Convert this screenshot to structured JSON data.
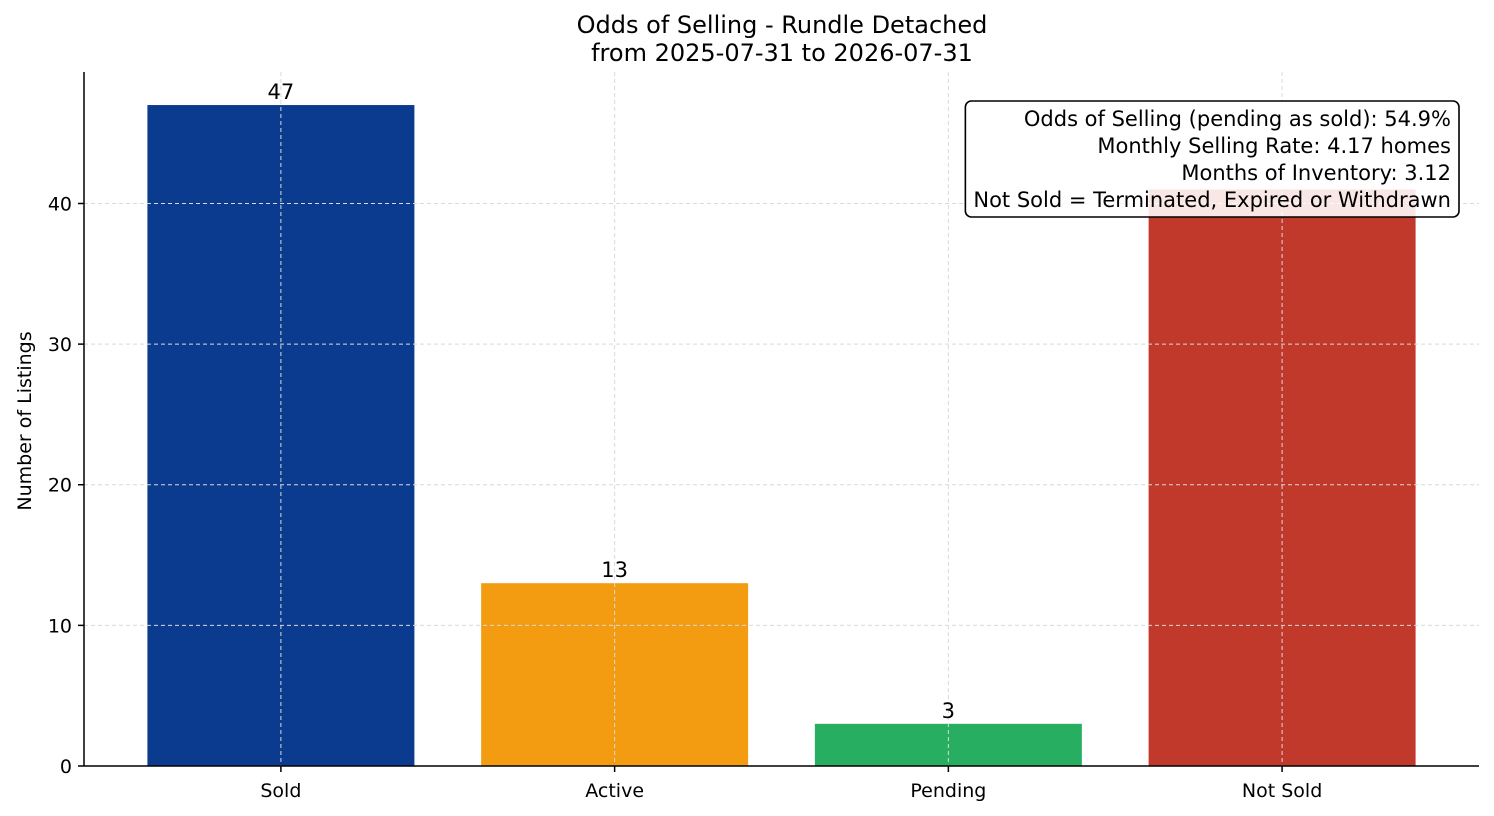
{
  "chart_data": {
    "type": "bar",
    "title": [
      "Odds of Selling - Rundle Detached",
      "from 2025-07-31 to 2026-07-31"
    ],
    "xlabel": "",
    "ylabel": "Number of Listings",
    "categories": [
      "Sold",
      "Active",
      "Pending",
      "Not Sold"
    ],
    "values": [
      47,
      13,
      3,
      41
    ],
    "data_labels": [
      "47",
      "13",
      "3",
      ""
    ],
    "colors": [
      "#0b3b8f",
      "#f39c12",
      "#27ae60",
      "#c0392b"
    ],
    "ylim": [
      0,
      49.35
    ],
    "yticks": [
      0,
      10,
      20,
      30,
      40
    ],
    "grid": true,
    "annotation": {
      "placement": "top-right",
      "lines": [
        "Odds of Selling (pending as sold): 54.9%",
        "Monthly Selling Rate: 4.17 homes",
        "Months of Inventory: 3.12",
        "Not Sold = Terminated, Expired or Withdrawn"
      ]
    }
  }
}
